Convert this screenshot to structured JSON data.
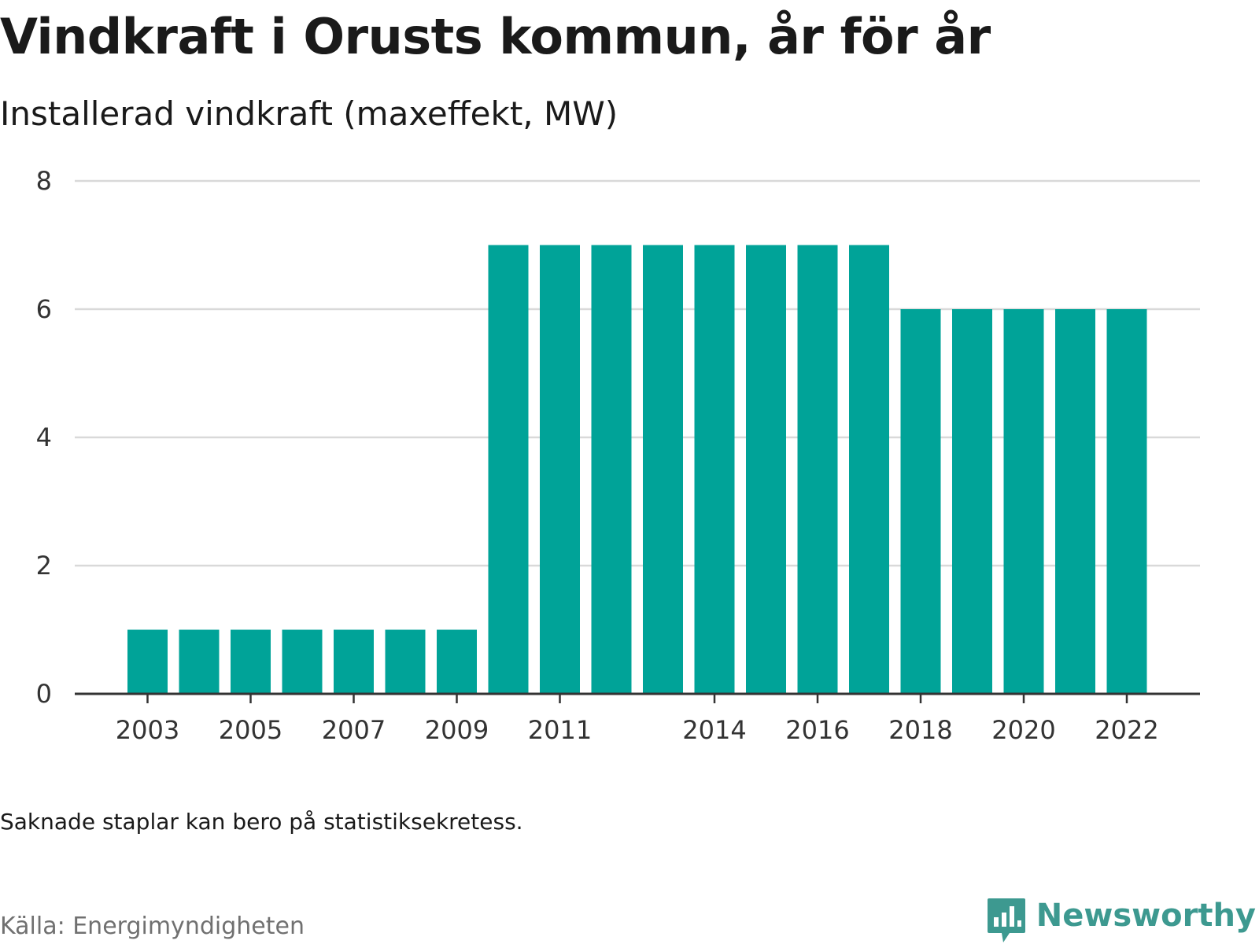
{
  "title": "Vindkraft i Orusts kommun, år för år",
  "subtitle": "Installerad vindkraft (maxeffekt, MW)",
  "note": "Saknade staplar kan bero på statistiksekretess.",
  "source": "Källa: Energimyndigheten",
  "brand": {
    "name": "Newsworthy",
    "logo_icon": "newsworthy-logo-icon",
    "color": "#3d9990"
  },
  "chart_data": {
    "type": "bar",
    "title": "Vindkraft i Orusts kommun, år för år",
    "subtitle": "Installerad vindkraft (maxeffekt, MW)",
    "xlabel": "",
    "ylabel": "",
    "categories": [
      "2003",
      "2004",
      "2005",
      "2006",
      "2007",
      "2008",
      "2009",
      "2010",
      "2011",
      "2012",
      "2013",
      "2014",
      "2015",
      "2016",
      "2017",
      "2018",
      "2019",
      "2020",
      "2021",
      "2022"
    ],
    "values": [
      1,
      1,
      1,
      1,
      1,
      1,
      1,
      7,
      7,
      7,
      7,
      7,
      7,
      7,
      7,
      6,
      6,
      6,
      6,
      6
    ],
    "x_tick_labels": [
      "2003",
      "2005",
      "2007",
      "2009",
      "2011",
      "2014",
      "2016",
      "2018",
      "2020",
      "2022"
    ],
    "y_ticks": [
      0,
      2,
      4,
      6,
      8
    ],
    "ylim": [
      0,
      8
    ],
    "grid": true,
    "legend": "none",
    "bar_color": "#00a398"
  }
}
